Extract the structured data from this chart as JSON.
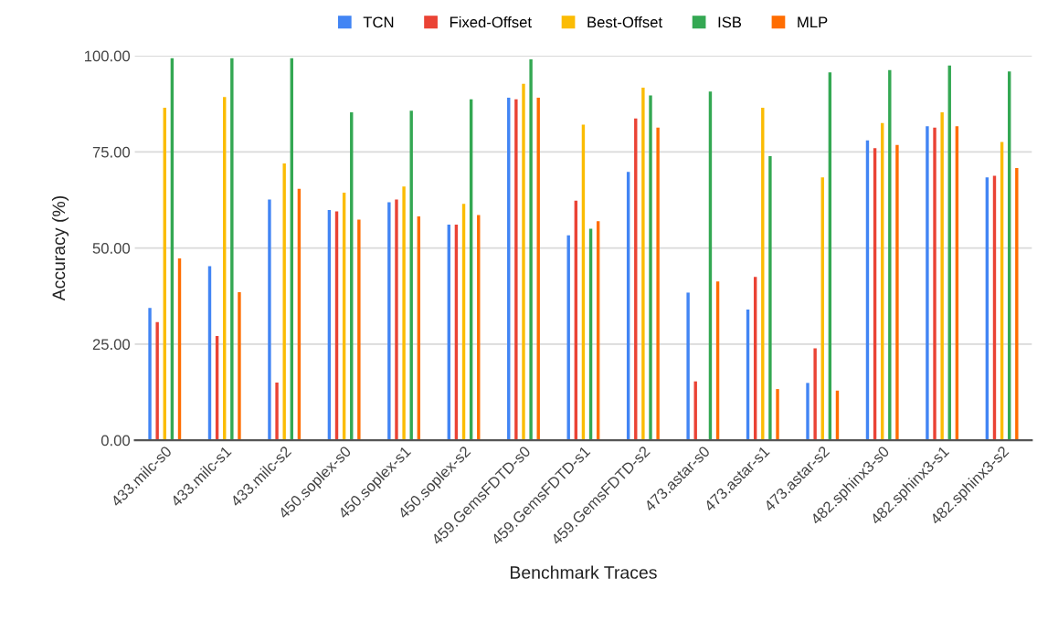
{
  "chart_data": {
    "type": "bar",
    "xlabel": "Benchmark Traces",
    "ylabel": "Accuracy (%)",
    "categories": [
      "433.milc-s0",
      "433.milc-s1",
      "433.milc-s2",
      "450.soplex-s0",
      "450.soplex-s1",
      "450.soplex-s2",
      "459.GemsFDTD-s0",
      "459.GemsFDTD-s1",
      "459.GemsFDTD-s2",
      "473.astar-s0",
      "473.astar-s1",
      "473.astar-s2",
      "482.sphinx3-s0",
      "482.sphinx3-s1",
      "482.sphinx3-s2"
    ],
    "series": [
      {
        "name": "TCN",
        "color": "#4285f4",
        "values": [
          34.4,
          45.3,
          62.6,
          59.9,
          61.9,
          56.1,
          89.1,
          53.3,
          69.8,
          38.4,
          34.0,
          14.9,
          78.0,
          81.7,
          68.4
        ]
      },
      {
        "name": "Fixed-Offset",
        "color": "#ea4335",
        "values": [
          30.7,
          27.1,
          15.0,
          59.5,
          62.6,
          56.1,
          88.7,
          62.3,
          83.7,
          15.3,
          42.5,
          23.9,
          76.0,
          81.3,
          68.8
        ]
      },
      {
        "name": "Best-Offset",
        "color": "#fbbc04",
        "values": [
          86.5,
          89.3,
          72.0,
          64.4,
          66.0,
          61.5,
          92.7,
          82.1,
          91.7,
          null,
          86.5,
          68.4,
          82.5,
          85.3,
          77.6
        ]
      },
      {
        "name": "ISB",
        "color": "#34a853",
        "values": [
          99.4,
          99.4,
          99.4,
          85.3,
          85.7,
          88.7,
          99.1,
          55.0,
          89.7,
          90.7,
          73.9,
          95.7,
          96.3,
          97.5,
          95.9
        ]
      },
      {
        "name": "MLP",
        "color": "#ff6d01",
        "values": [
          47.3,
          38.5,
          65.4,
          57.4,
          58.2,
          58.6,
          89.1,
          57.0,
          81.3,
          41.3,
          13.3,
          12.9,
          76.8,
          81.7,
          70.8
        ]
      }
    ],
    "ylim": [
      0,
      100
    ],
    "yticks": [
      {
        "value": 0,
        "label": "0.00"
      },
      {
        "value": 25,
        "label": "25.00"
      },
      {
        "value": 50,
        "label": "50.00"
      },
      {
        "value": 75,
        "label": "75.00"
      },
      {
        "value": 100,
        "label": "100.00"
      }
    ],
    "grid": "y",
    "legend": "top"
  }
}
